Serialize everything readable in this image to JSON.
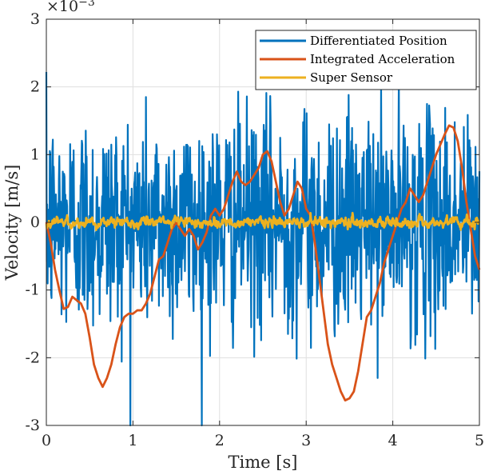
{
  "chart_data": {
    "type": "line",
    "xlabel": "Time [s]",
    "ylabel": "Velocity [m/s]",
    "xlim": [
      0,
      5
    ],
    "ylim": [
      -0.003,
      0.003
    ],
    "y_exponent_label": "×10",
    "y_exponent": "−3",
    "x_ticks": [
      0,
      1,
      2,
      3,
      4,
      5
    ],
    "x_tick_labels": [
      "0",
      "1",
      "2",
      "3",
      "4",
      "5"
    ],
    "y_ticks": [
      -3,
      -2,
      -1,
      0,
      1,
      2,
      3
    ],
    "y_tick_labels": [
      "-3",
      "-2",
      "-1",
      "0",
      "1",
      "2",
      "3"
    ],
    "grid": true,
    "legend_position": "top-right",
    "series": [
      {
        "name": "Differentiated Position",
        "color": "#0072BD",
        "kind": "noise",
        "noise_std": 0.0008,
        "x_start": 0,
        "x_end": 5,
        "samples": 1000
      },
      {
        "name": "Integrated Acceleration",
        "color": "#D95319",
        "x": [
          0,
          0.05,
          0.1,
          0.15,
          0.2,
          0.25,
          0.3,
          0.35,
          0.4,
          0.45,
          0.5,
          0.55,
          0.6,
          0.65,
          0.7,
          0.75,
          0.8,
          0.85,
          0.9,
          0.95,
          1.0,
          1.05,
          1.1,
          1.15,
          1.2,
          1.25,
          1.3,
          1.35,
          1.4,
          1.45,
          1.5,
          1.55,
          1.6,
          1.65,
          1.7,
          1.75,
          1.8,
          1.85,
          1.9,
          1.95,
          2.0,
          2.05,
          2.1,
          2.15,
          2.2,
          2.25,
          2.3,
          2.35,
          2.4,
          2.45,
          2.5,
          2.55,
          2.6,
          2.65,
          2.7,
          2.75,
          2.8,
          2.85,
          2.9,
          2.95,
          3.0,
          3.05,
          3.1,
          3.15,
          3.2,
          3.25,
          3.3,
          3.35,
          3.4,
          3.45,
          3.5,
          3.55,
          3.6,
          3.65,
          3.7,
          3.75,
          3.8,
          3.85,
          3.9,
          3.95,
          4.0,
          4.05,
          4.1,
          4.15,
          4.2,
          4.25,
          4.3,
          4.35,
          4.4,
          4.45,
          4.5,
          4.55,
          4.6,
          4.65,
          4.7,
          4.75,
          4.8,
          4.85,
          4.9,
          4.95,
          5.0
        ],
        "y": [
          0.0,
          -0.0003,
          -0.0007,
          -0.001,
          -0.00128,
          -0.00125,
          -0.0011,
          -0.00115,
          -0.0012,
          -0.00135,
          -0.0017,
          -0.0021,
          -0.0023,
          -0.00243,
          -0.0023,
          -0.0021,
          -0.0018,
          -0.00155,
          -0.0014,
          -0.00135,
          -0.00135,
          -0.0013,
          -0.0013,
          -0.0012,
          -0.00105,
          -0.0008,
          -0.00055,
          -0.0005,
          -0.0003,
          -0.0001,
          0.0,
          -0.0001,
          -0.0002,
          -0.0001,
          -0.0002,
          -0.0004,
          -0.0003,
          -0.00015,
          0.0001,
          0.0002,
          0.0001,
          0.0002,
          0.0004,
          0.0006,
          0.00075,
          0.0006,
          0.00055,
          0.0006,
          0.0007,
          0.0008,
          0.001,
          0.00105,
          0.0009,
          0.0006,
          0.0003,
          0.0001,
          0.0002,
          0.0004,
          0.0006,
          0.0005,
          0.0002,
          0.0001,
          -0.0003,
          -0.0008,
          -0.0013,
          -0.0018,
          -0.0021,
          -0.0023,
          -0.0025,
          -0.00263,
          -0.0026,
          -0.0025,
          -0.0022,
          -0.0018,
          -0.0014,
          -0.0013,
          -0.0011,
          -0.0009,
          -0.0006,
          -0.0004,
          -0.0002,
          0.0,
          0.0002,
          0.0003,
          0.0005,
          0.0004,
          0.0003,
          0.0004,
          0.0006,
          0.0008,
          0.001,
          0.00115,
          0.0013,
          0.00143,
          0.0014,
          0.0012,
          0.0008,
          0.0003,
          -0.0001,
          -0.0005,
          -0.0007
        ]
      },
      {
        "name": "Super Sensor",
        "color": "#EDB120",
        "kind": "noise",
        "noise_std": 8e-05,
        "x_start": 0,
        "x_end": 5,
        "samples": 1000
      }
    ]
  }
}
